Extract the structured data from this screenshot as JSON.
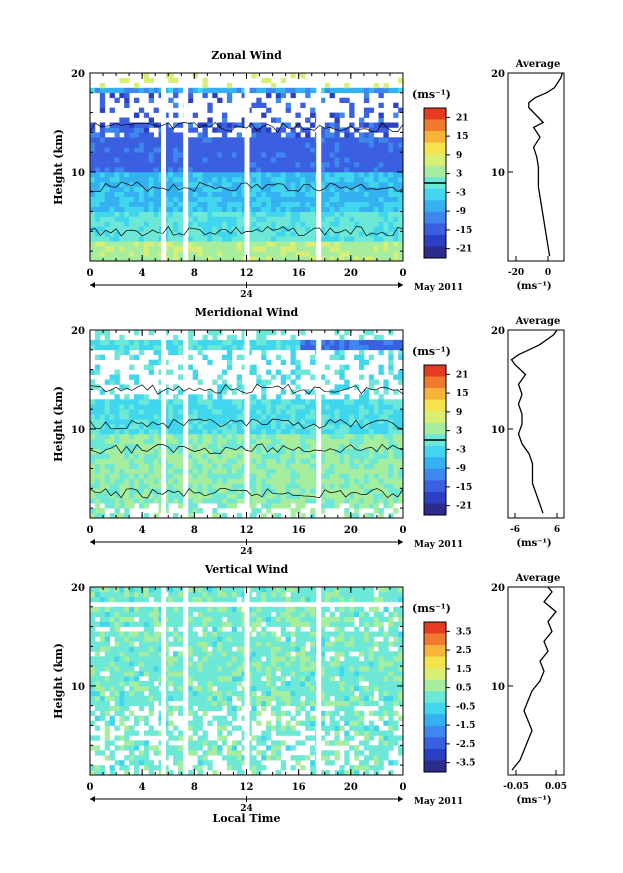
{
  "figure": {
    "date_label": "May 2011",
    "xlabel": "Local Time",
    "date_marker": "24",
    "x_ticks": [
      "0",
      "4",
      "8",
      "12",
      "16",
      "20",
      "0"
    ],
    "unit_label": "(ms⁻¹)"
  },
  "chart_data": [
    {
      "type": "heatmap",
      "title": "Zonal Wind",
      "ylabel": "Height (km)",
      "xlabel": "",
      "ylim": [
        1,
        20
      ],
      "y_ticks": [
        "10",
        "20"
      ],
      "xlim": [
        0,
        24
      ],
      "colorbar_ticks": [
        "21",
        "15",
        "9",
        "3",
        "-3",
        "-9",
        "-15",
        "-21"
      ],
      "colorbar_range": [
        -24,
        24
      ],
      "data_gaps_hours": [
        5.6,
        7.3,
        12.0,
        17.5
      ],
      "profile": {
        "title": "Average",
        "xlabel": "(ms⁻¹)",
        "x_ticks": [
          "-20",
          "0"
        ],
        "xlim": [
          -25,
          10
        ],
        "heights": [
          1.5,
          2.5,
          3.5,
          4.5,
          5.5,
          6.5,
          7.5,
          8.5,
          9.5,
          10.5,
          11.5,
          12.5,
          13.5,
          14.5,
          15.0,
          15.5,
          16.5,
          17.0,
          17.5,
          18.0,
          18.5,
          19.0,
          19.5,
          20
        ],
        "values": [
          1,
          0,
          -1,
          -2,
          -3,
          -4,
          -5,
          -6,
          -6,
          -6,
          -7,
          -9,
          -5,
          -9,
          -3,
          -6,
          -12,
          -12,
          -8,
          -1,
          4,
          6,
          8,
          9
        ]
      }
    },
    {
      "type": "heatmap",
      "title": "Meridional Wind",
      "ylabel": "Height (km)",
      "xlabel": "",
      "ylim": [
        1,
        20
      ],
      "y_ticks": [
        "10",
        "20"
      ],
      "xlim": [
        0,
        24
      ],
      "colorbar_ticks": [
        "21",
        "15",
        "9",
        "3",
        "-3",
        "-9",
        "-15",
        "-21"
      ],
      "colorbar_range": [
        -24,
        24
      ],
      "data_gaps_hours": [
        5.6,
        7.3,
        12.0,
        17.5
      ],
      "profile": {
        "title": "Average",
        "xlabel": "(ms⁻¹)",
        "x_ticks": [
          "-6",
          "6"
        ],
        "xlim": [
          -8,
          8
        ],
        "heights": [
          1.5,
          2.5,
          3.5,
          4.5,
          5.5,
          6.5,
          7.5,
          8.5,
          9.5,
          10.5,
          11.5,
          12.5,
          13.5,
          14.5,
          15.5,
          16.5,
          17.0,
          17.5,
          18.0,
          18.5,
          19.0,
          19.5,
          20
        ],
        "values": [
          2,
          1,
          0,
          -1,
          -1,
          -1,
          -2,
          -4,
          -5,
          -4,
          -4,
          -5,
          -4,
          -5,
          -3,
          -6,
          -7,
          -5,
          -2,
          1,
          3,
          5,
          6
        ]
      }
    },
    {
      "type": "heatmap",
      "title": "Vertical Wind",
      "ylabel": "Height (km)",
      "xlabel": "Local Time",
      "ylim": [
        1,
        20
      ],
      "y_ticks": [
        "10",
        "20"
      ],
      "xlim": [
        0,
        24
      ],
      "colorbar_ticks": [
        "3.5",
        "2.5",
        "1.5",
        "0.5",
        "-0.5",
        "-1.5",
        "-2.5",
        "-3.5"
      ],
      "colorbar_range": [
        -4,
        4
      ],
      "data_gaps_hours": [
        5.6,
        7.3,
        12.0,
        17.5
      ],
      "profile": {
        "title": "Average",
        "xlabel": "(ms⁻¹)",
        "x_ticks": [
          "-0.05",
          "0.05"
        ],
        "xlim": [
          -0.07,
          0.07
        ],
        "heights": [
          1.5,
          2.5,
          3.5,
          4.5,
          5.5,
          6.5,
          7.5,
          8.5,
          9.5,
          10.0,
          10.5,
          11.5,
          12.5,
          13.5,
          14.5,
          15.5,
          16.5,
          17.5,
          18.5,
          19.5,
          20
        ],
        "values": [
          -0.06,
          -0.04,
          -0.03,
          -0.02,
          -0.01,
          -0.02,
          -0.03,
          -0.02,
          -0.01,
          0.0,
          0.01,
          0.02,
          0.01,
          0.03,
          0.02,
          0.04,
          0.03,
          0.05,
          0.02,
          0.04,
          0.03
        ]
      }
    }
  ]
}
